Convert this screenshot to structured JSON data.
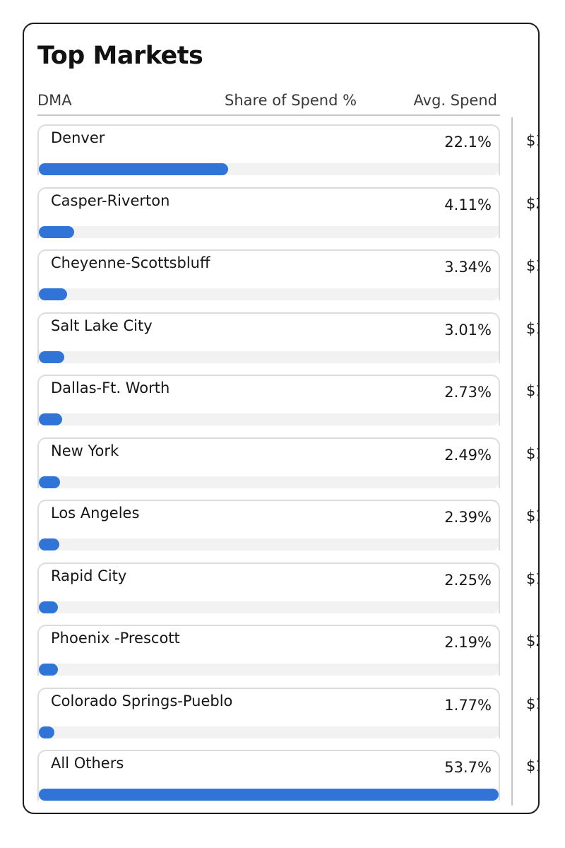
{
  "widget": {
    "title": "Top Markets",
    "columns": {
      "dma": "DMA",
      "share": "Share of Spend %",
      "avg": "Avg. Spend"
    },
    "bar_color": "#2f74d6",
    "track_color": "#f2f2f2",
    "rows": [
      {
        "name": "Denver",
        "share_label": "22.1%",
        "share": 22.1,
        "avg_visible": "$1"
      },
      {
        "name": "Casper-Riverton",
        "share_label": "4.11%",
        "share": 4.11,
        "avg_visible": "$2"
      },
      {
        "name": "Cheyenne-Scottsbluff",
        "share_label": "3.34%",
        "share": 3.34,
        "avg_visible": "$1"
      },
      {
        "name": "Salt Lake City",
        "share_label": "3.01%",
        "share": 3.01,
        "avg_visible": "$1"
      },
      {
        "name": "Dallas-Ft. Worth",
        "share_label": "2.73%",
        "share": 2.73,
        "avg_visible": "$1"
      },
      {
        "name": "New York",
        "share_label": "2.49%",
        "share": 2.49,
        "avg_visible": "$1"
      },
      {
        "name": "Los Angeles",
        "share_label": "2.39%",
        "share": 2.39,
        "avg_visible": "$1"
      },
      {
        "name": "Rapid City",
        "share_label": "2.25%",
        "share": 2.25,
        "avg_visible": "$1"
      },
      {
        "name": "Phoenix -Prescott",
        "share_label": "2.19%",
        "share": 2.19,
        "avg_visible": "$2"
      },
      {
        "name": "Colorado Springs-Pueblo",
        "share_label": "1.77%",
        "share": 1.77,
        "avg_visible": "$1"
      },
      {
        "name": "All Others",
        "share_label": "53.7%",
        "share": 53.7,
        "avg_visible": "$1"
      }
    ]
  }
}
